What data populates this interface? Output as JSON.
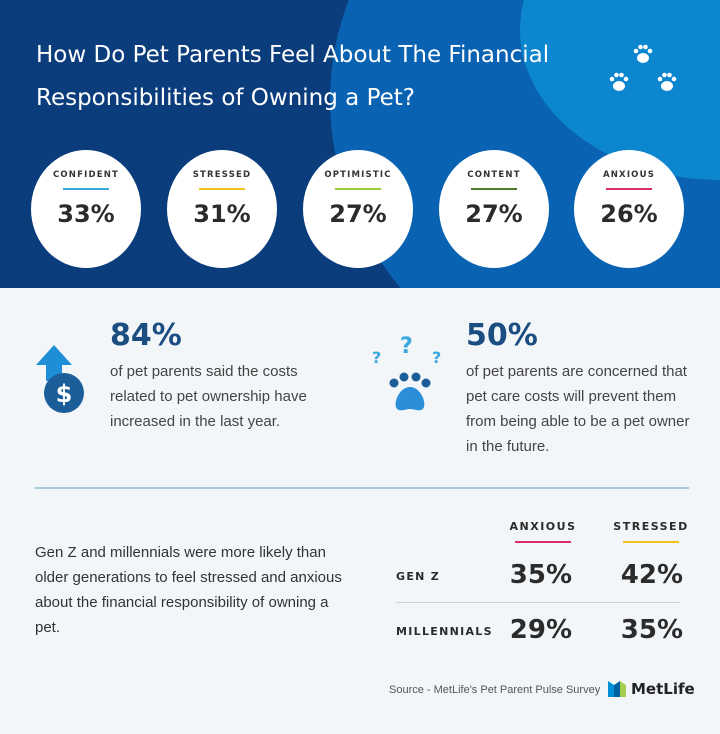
{
  "header": {
    "title": "How Do Pet Parents Feel About The Financial Responsibilities of Owning a Pet?",
    "icon": "paw-prints-icon"
  },
  "feelings": [
    {
      "label": "CONFIDENT",
      "value": "33%",
      "color": "#3aa7dd"
    },
    {
      "label": "STRESSED",
      "value": "31%",
      "color": "#f0c419"
    },
    {
      "label": "OPTIMISTIC",
      "value": "27%",
      "color": "#9ccc3c"
    },
    {
      "label": "CONTENT",
      "value": "27%",
      "color": "#4f7a2a"
    },
    {
      "label": "ANXIOUS",
      "value": "26%",
      "color": "#d92e6c"
    }
  ],
  "stats": [
    {
      "value": "84%",
      "text": "of pet parents said the costs related to pet ownership have increased in the last year.",
      "icon": "dollar-up-arrow-icon"
    },
    {
      "value": "50%",
      "text": "of pet parents are concerned that pet care costs will prevent them from being able to be a pet owner in the future.",
      "icon": "paw-question-icon"
    }
  ],
  "generations": {
    "text": "Gen Z and millennials were more likely than older generations to feel stressed and anxious about the financial responsibility of owning a pet.",
    "columns": [
      {
        "label": "ANXIOUS",
        "color": "#d92e6c"
      },
      {
        "label": "STRESSED",
        "color": "#f0c419"
      }
    ],
    "rows": [
      {
        "label": "GEN Z",
        "values": [
          "35%",
          "42%"
        ]
      },
      {
        "label": "MILLENNIALS",
        "values": [
          "29%",
          "35%"
        ]
      }
    ]
  },
  "footer": {
    "source": "Source - MetLife's Pet Parent Pulse Survey",
    "logo": "MetLife"
  },
  "colors": {
    "navy": "#0b3d7c",
    "blue": "#0a63b2",
    "accent": "#1b4d80"
  }
}
